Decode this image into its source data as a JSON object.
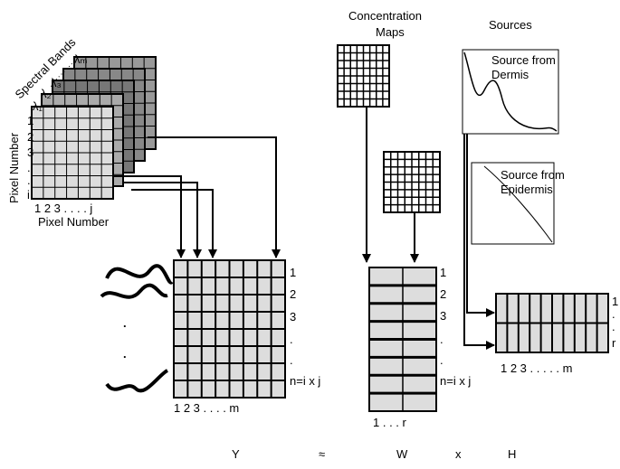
{
  "cube": {
    "axis_title": "Spectral Bands",
    "bands": [
      "λ₁",
      "λ₂",
      "λ₃",
      "λₘ"
    ],
    "row_axis": "Pixel Number",
    "row_labels": [
      "1",
      "2",
      "3",
      ".",
      ".",
      "i"
    ],
    "col_labels": "1 2 3 . . . . j",
    "col_axis": "Pixel Number"
  },
  "concentration_maps": {
    "title_lines": [
      "Concentration",
      "Maps"
    ]
  },
  "sources": {
    "title": "Sources",
    "items": [
      [
        "Source from",
        "Dermis"
      ],
      [
        "Source from",
        "Epidermis"
      ]
    ]
  },
  "Y": {
    "row_labels": [
      "1",
      "2",
      "3",
      ".",
      ".",
      "n=i x j"
    ],
    "col_labels": "1 2 3 . . . . m",
    "signals": [
      ".",
      "."
    ]
  },
  "W": {
    "row_labels": [
      "1",
      "2",
      "3",
      ".",
      ".",
      "n=i x j"
    ],
    "col_labels": "1 . . . r"
  },
  "H": {
    "row_labels": [
      "1",
      ".",
      ".",
      "r"
    ],
    "col_labels": "1 2 3 . . . . . m"
  },
  "equation": [
    "Y",
    "≈",
    "W",
    "x",
    "H"
  ]
}
